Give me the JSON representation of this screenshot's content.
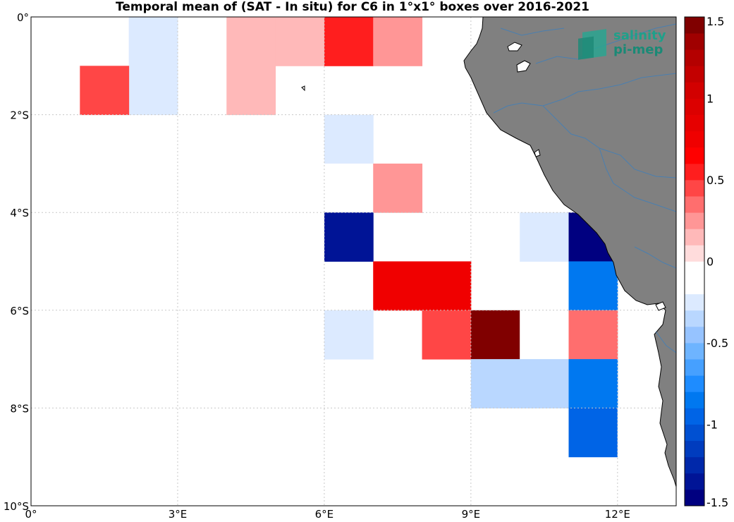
{
  "title": "Temporal mean of (SAT - In situ) for C6 in 1°x1° boxes over 2016-2021",
  "logo": {
    "line1": "salinity",
    "line2": "pi-mep"
  },
  "colors": {
    "land": "#808080",
    "river": "#4a7fb0",
    "grid": "#c8c8c8"
  },
  "chart_data": {
    "type": "heatmap",
    "title": "Temporal mean of (SAT - In situ) for C6 in 1°x1° boxes over 2016-2021",
    "xlim": [
      0,
      13.2
    ],
    "ylim": [
      -10,
      0
    ],
    "x_ticks": [
      {
        "value": 0,
        "label": "0°"
      },
      {
        "value": 3,
        "label": "3°E"
      },
      {
        "value": 6,
        "label": "6°E"
      },
      {
        "value": 9,
        "label": "9°E"
      },
      {
        "value": 12,
        "label": "12°E"
      }
    ],
    "y_ticks": [
      {
        "value": 0,
        "label": "0°"
      },
      {
        "value": -2,
        "label": "2°S"
      },
      {
        "value": -4,
        "label": "4°S"
      },
      {
        "value": -6,
        "label": "6°S"
      },
      {
        "value": -8,
        "label": "8°S"
      },
      {
        "value": -10,
        "label": "10°S"
      }
    ],
    "grid": true,
    "colorbar": {
      "range": [
        -1.5,
        1.5
      ],
      "step": 0.1,
      "ticks": [
        1.5,
        1,
        0.5,
        0,
        -0.5,
        -1,
        -1.5
      ],
      "tick_labels": [
        "1.5",
        "1",
        "0.5",
        "0",
        "-0.5",
        "-1",
        "-1.5"
      ],
      "colors": [
        "#000080",
        "#001496",
        "#0028aa",
        "#003cbe",
        "#0050d2",
        "#0064e6",
        "#0078f0",
        "#1e8cff",
        "#46a0ff",
        "#6eb4ff",
        "#96c3ff",
        "#b9d7ff",
        "#dceaff",
        "#ffffff",
        "#ffffff",
        "#ffdcdc",
        "#ffb9b9",
        "#ff9696",
        "#ff6e6e",
        "#ff4646",
        "#ff1e1e",
        "#ff0000",
        "#f00000",
        "#e60000",
        "#dc0000",
        "#d20000",
        "#c30000",
        "#b40000",
        "#a00000",
        "#800000"
      ]
    },
    "cells": [
      {
        "lon": 2.5,
        "lat": -0.5,
        "value": -0.22
      },
      {
        "lon": 2.5,
        "lat": -1.5,
        "value": -0.22
      },
      {
        "lon": 1.5,
        "lat": -1.5,
        "value": 0.44
      },
      {
        "lon": 4.5,
        "lat": -0.5,
        "value": 0.12
      },
      {
        "lon": 5.5,
        "lat": -0.5,
        "value": 0.12
      },
      {
        "lon": 4.5,
        "lat": -1.5,
        "value": 0.12
      },
      {
        "lon": 6.5,
        "lat": -0.5,
        "value": 0.55
      },
      {
        "lon": 7.5,
        "lat": -0.5,
        "value": 0.25
      },
      {
        "lon": 6.5,
        "lat": -2.5,
        "value": -0.22
      },
      {
        "lon": 6.5,
        "lat": -3.5,
        "value": -0.12
      },
      {
        "lon": 7.5,
        "lat": -3.5,
        "value": 0.25
      },
      {
        "lon": 6.5,
        "lat": -4.5,
        "value": -1.35
      },
      {
        "lon": 10.5,
        "lat": -4.5,
        "value": -0.22
      },
      {
        "lon": 11.5,
        "lat": -4.5,
        "value": -1.5
      },
      {
        "lon": 7.5,
        "lat": -5.5,
        "value": 0.72
      },
      {
        "lon": 8.5,
        "lat": -5.5,
        "value": 0.72
      },
      {
        "lon": 11.5,
        "lat": -5.5,
        "value": -0.82
      },
      {
        "lon": 6.5,
        "lat": -6.5,
        "value": -0.22
      },
      {
        "lon": 8.5,
        "lat": -6.5,
        "value": 0.44
      },
      {
        "lon": 9.5,
        "lat": -6.5,
        "value": 1.5
      },
      {
        "lon": 10.5,
        "lat": -6.5,
        "value": -0.12
      },
      {
        "lon": 11.5,
        "lat": -6.5,
        "value": 0.35
      },
      {
        "lon": 9.5,
        "lat": -7.5,
        "value": -0.32
      },
      {
        "lon": 10.5,
        "lat": -7.5,
        "value": -0.32
      },
      {
        "lon": 11.5,
        "lat": -7.5,
        "value": -0.82
      },
      {
        "lon": 11.5,
        "lat": -8.5,
        "value": -0.92
      },
      {
        "lon": 12.5,
        "lat": -8.5,
        "value": -0.12
      },
      {
        "lon": 8.5,
        "lat": -9.5,
        "value": -0.12
      }
    ]
  }
}
